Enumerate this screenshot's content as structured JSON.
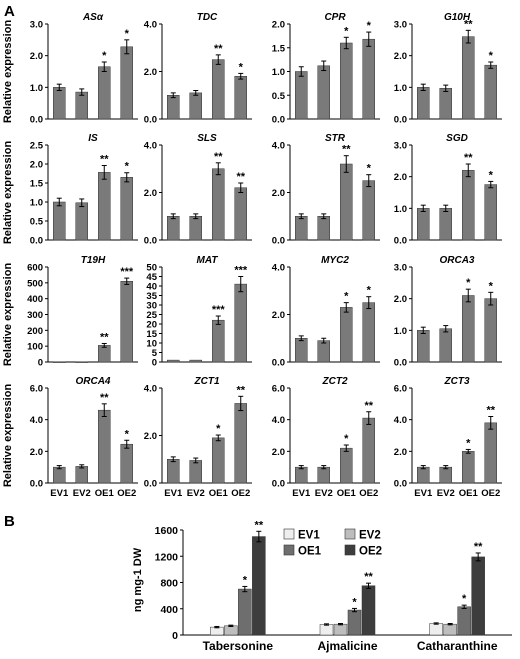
{
  "panels": {
    "a": {
      "label": "A",
      "ylabel": "Relative expression"
    },
    "b": {
      "label": "B",
      "ylabel": "ng mg-1 DW"
    }
  },
  "colors": {
    "EV1": "#eeeeee",
    "EV2": "#bdbdbd",
    "OE1": "#6e6e6e",
    "OE2": "#3d3d3d",
    "single": "#7a7a7a"
  },
  "chart_data": [
    {
      "type": "bar",
      "panel": "A",
      "title": "ASα",
      "categories": [
        "EV1",
        "EV2",
        "OE1",
        "OE2"
      ],
      "values": [
        1.0,
        0.85,
        1.65,
        2.28
      ],
      "errors": [
        0.1,
        0.1,
        0.15,
        0.22
      ],
      "significance": [
        "",
        "",
        "*",
        "*"
      ],
      "ylabel": "Relative expression",
      "ylim": [
        0,
        3.0
      ],
      "yticks": [
        0.0,
        1.0,
        2.0,
        3.0
      ],
      "yticklabels": [
        "0.0",
        "1.0",
        "2.0",
        "3.0"
      ],
      "xticks_shown": false
    },
    {
      "type": "bar",
      "panel": "A",
      "title": "TDC",
      "categories": [
        "EV1",
        "EV2",
        "OE1",
        "OE2"
      ],
      "values": [
        1.0,
        1.1,
        2.5,
        1.8
      ],
      "errors": [
        0.1,
        0.1,
        0.2,
        0.12
      ],
      "significance": [
        "",
        "",
        "**",
        "*"
      ],
      "ylim": [
        0,
        4.0
      ],
      "yticks": [
        0.0,
        2.0,
        4.0
      ],
      "yticklabels": [
        "0.0",
        "2.0",
        "4.0"
      ],
      "xticks_shown": false
    },
    {
      "type": "bar",
      "panel": "A",
      "title": "CPR",
      "categories": [
        "EV1",
        "EV2",
        "OE1",
        "OE2"
      ],
      "values": [
        1.0,
        1.12,
        1.6,
        1.68
      ],
      "errors": [
        0.1,
        0.1,
        0.12,
        0.15
      ],
      "significance": [
        "",
        "",
        "*",
        "*"
      ],
      "ylim": [
        0,
        2.0
      ],
      "yticks": [
        0.0,
        0.5,
        1.0,
        1.5,
        2.0
      ],
      "yticklabels": [
        "0.0",
        "0.5",
        "1.0",
        "1.5",
        "2.0"
      ],
      "xticks_shown": false
    },
    {
      "type": "bar",
      "panel": "A",
      "title": "G10H",
      "categories": [
        "EV1",
        "EV2",
        "OE1",
        "OE2"
      ],
      "values": [
        1.0,
        0.97,
        2.6,
        1.7
      ],
      "errors": [
        0.1,
        0.1,
        0.2,
        0.1
      ],
      "significance": [
        "",
        "",
        "**",
        "*"
      ],
      "ylim": [
        0,
        3.0
      ],
      "yticks": [
        0.0,
        1.0,
        2.0,
        3.0
      ],
      "yticklabels": [
        "0.0",
        "1.0",
        "2.0",
        "3.0"
      ],
      "xticks_shown": false
    },
    {
      "type": "bar",
      "panel": "A",
      "title": "IS",
      "categories": [
        "EV1",
        "EV2",
        "OE1",
        "OE2"
      ],
      "values": [
        1.0,
        0.98,
        1.78,
        1.65
      ],
      "errors": [
        0.1,
        0.1,
        0.18,
        0.12
      ],
      "significance": [
        "",
        "",
        "**",
        "*"
      ],
      "ylabel": "Relative expression",
      "ylim": [
        0,
        2.5
      ],
      "yticks": [
        0.0,
        0.5,
        1.0,
        1.5,
        2.0,
        2.5
      ],
      "yticklabels": [
        "0.0",
        "0.5",
        "1.0",
        "1.5",
        "2.0",
        "2.5"
      ],
      "xticks_shown": false
    },
    {
      "type": "bar",
      "panel": "A",
      "title": "SLS",
      "categories": [
        "EV1",
        "EV2",
        "OE1",
        "OE2"
      ],
      "values": [
        1.0,
        1.0,
        3.0,
        2.2
      ],
      "errors": [
        0.1,
        0.1,
        0.25,
        0.2
      ],
      "significance": [
        "",
        "",
        "**",
        "**"
      ],
      "ylim": [
        0,
        4.0
      ],
      "yticks": [
        0.0,
        2.0,
        4.0
      ],
      "yticklabels": [
        "0.0",
        "2.0",
        "4.0"
      ],
      "xticks_shown": false
    },
    {
      "type": "bar",
      "panel": "A",
      "title": "STR",
      "categories": [
        "EV1",
        "EV2",
        "OE1",
        "OE2"
      ],
      "values": [
        1.0,
        1.0,
        3.2,
        2.5
      ],
      "errors": [
        0.1,
        0.1,
        0.35,
        0.25
      ],
      "significance": [
        "",
        "",
        "**",
        "*"
      ],
      "ylim": [
        0,
        4.0
      ],
      "yticks": [
        0.0,
        2.0,
        4.0
      ],
      "yticklabels": [
        "0.0",
        "2.0",
        "4.0"
      ],
      "xticks_shown": false
    },
    {
      "type": "bar",
      "panel": "A",
      "title": "SGD",
      "categories": [
        "EV1",
        "EV2",
        "OE1",
        "OE2"
      ],
      "values": [
        1.0,
        1.0,
        2.2,
        1.75
      ],
      "errors": [
        0.1,
        0.1,
        0.2,
        0.1
      ],
      "significance": [
        "",
        "",
        "**",
        "*"
      ],
      "ylim": [
        0,
        3.0
      ],
      "yticks": [
        0.0,
        1.0,
        2.0,
        3.0
      ],
      "yticklabels": [
        "0.0",
        "1.0",
        "2.0",
        "3.0"
      ],
      "xticks_shown": false
    },
    {
      "type": "bar",
      "panel": "A",
      "title": "T19H",
      "categories": [
        "EV1",
        "EV2",
        "OE1",
        "OE2"
      ],
      "values": [
        1,
        1,
        105,
        510
      ],
      "errors": [
        0,
        0,
        12,
        20
      ],
      "significance": [
        "",
        "",
        "**",
        "***"
      ],
      "ylabel": "Relative expression",
      "ylim": [
        0,
        600
      ],
      "yticks": [
        0,
        100,
        200,
        300,
        400,
        500,
        600
      ],
      "yticklabels": [
        "0",
        "100",
        "200",
        "300",
        "400",
        "500",
        "600"
      ],
      "xticks_shown": false
    },
    {
      "type": "bar",
      "panel": "A",
      "title": "MAT",
      "categories": [
        "EV1",
        "EV2",
        "OE1",
        "OE2"
      ],
      "values": [
        1,
        1,
        22,
        41
      ],
      "errors": [
        0,
        0,
        2.2,
        4
      ],
      "significance": [
        "",
        "",
        "***",
        "***"
      ],
      "ylim": [
        0,
        50
      ],
      "yticks": [
        0,
        5,
        10,
        15,
        20,
        25,
        30,
        35,
        40,
        45,
        50
      ],
      "yticklabels": [
        "0",
        "5",
        "10",
        "15",
        "20",
        "25",
        "30",
        "35",
        "40",
        "45",
        "50"
      ],
      "xticks_shown": false
    },
    {
      "type": "bar",
      "panel": "A",
      "title": "MYC2",
      "categories": [
        "EV1",
        "EV2",
        "OE1",
        "OE2"
      ],
      "values": [
        1.0,
        0.9,
        2.3,
        2.5
      ],
      "errors": [
        0.1,
        0.1,
        0.2,
        0.25
      ],
      "significance": [
        "",
        "",
        "*",
        "*"
      ],
      "ylim": [
        0,
        4.0
      ],
      "yticks": [
        0.0,
        2.0,
        4.0
      ],
      "yticklabels": [
        "0.0",
        "2.0",
        "4.0"
      ],
      "xticks_shown": false
    },
    {
      "type": "bar",
      "panel": "A",
      "title": "ORCA3",
      "categories": [
        "EV1",
        "EV2",
        "OE1",
        "OE2"
      ],
      "values": [
        1.0,
        1.05,
        2.1,
        2.0
      ],
      "errors": [
        0.1,
        0.1,
        0.2,
        0.2
      ],
      "significance": [
        "",
        "",
        "*",
        "*"
      ],
      "ylim": [
        0,
        3.0
      ],
      "yticks": [
        0.0,
        1.0,
        2.0,
        3.0
      ],
      "yticklabels": [
        "0.0",
        "1.0",
        "2.0",
        "3.0"
      ],
      "xticks_shown": false
    },
    {
      "type": "bar",
      "panel": "A",
      "title": "ORCA4",
      "categories": [
        "EV1",
        "EV2",
        "OE1",
        "OE2"
      ],
      "values": [
        1.0,
        1.05,
        4.6,
        2.45
      ],
      "errors": [
        0.1,
        0.1,
        0.4,
        0.25
      ],
      "significance": [
        "",
        "",
        "**",
        "*"
      ],
      "ylabel": "Relative expression",
      "ylim": [
        0,
        6.0
      ],
      "yticks": [
        0.0,
        2.0,
        4.0,
        6.0
      ],
      "yticklabels": [
        "0.0",
        "2.0",
        "4.0",
        "6.0"
      ],
      "xticks_shown": true
    },
    {
      "type": "bar",
      "panel": "A",
      "title": "ZCT1",
      "categories": [
        "EV1",
        "EV2",
        "OE1",
        "OE2"
      ],
      "values": [
        1.0,
        0.95,
        1.9,
        3.35
      ],
      "errors": [
        0.1,
        0.1,
        0.12,
        0.3
      ],
      "significance": [
        "",
        "",
        "*",
        "**"
      ],
      "ylim": [
        0,
        4.0
      ],
      "yticks": [
        0.0,
        2.0,
        4.0
      ],
      "yticklabels": [
        "0.0",
        "2.0",
        "4.0"
      ],
      "xticks_shown": true
    },
    {
      "type": "bar",
      "panel": "A",
      "title": "ZCT2",
      "categories": [
        "EV1",
        "EV2",
        "OE1",
        "OE2"
      ],
      "values": [
        1.0,
        1.0,
        2.2,
        4.1
      ],
      "errors": [
        0.1,
        0.1,
        0.2,
        0.4
      ],
      "significance": [
        "",
        "",
        "*",
        "**"
      ],
      "ylim": [
        0,
        6.0
      ],
      "yticks": [
        0.0,
        2.0,
        4.0,
        6.0
      ],
      "yticklabels": [
        "0.0",
        "2.0",
        "4.0",
        "6.0"
      ],
      "xticks_shown": true
    },
    {
      "type": "bar",
      "panel": "A",
      "title": "ZCT3",
      "categories": [
        "EV1",
        "EV2",
        "OE1",
        "OE2"
      ],
      "values": [
        1.0,
        1.0,
        2.0,
        3.8
      ],
      "errors": [
        0.1,
        0.1,
        0.12,
        0.4
      ],
      "significance": [
        "",
        "",
        "*",
        "**"
      ],
      "ylim": [
        0,
        6.0
      ],
      "yticks": [
        0.0,
        2.0,
        4.0,
        6.0
      ],
      "yticklabels": [
        "0.0",
        "2.0",
        "4.0",
        "6.0"
      ],
      "xticks_shown": true
    },
    {
      "type": "bar",
      "panel": "B",
      "categories": [
        "Tabersonine",
        "Ajmalicine",
        "Catharanthine"
      ],
      "series": [
        {
          "name": "EV1",
          "values": [
            120,
            160,
            175
          ],
          "errors": [
            10,
            10,
            10
          ],
          "significance": [
            "",
            "",
            ""
          ]
        },
        {
          "name": "EV2",
          "values": [
            140,
            165,
            165
          ],
          "errors": [
            10,
            10,
            10
          ],
          "significance": [
            "",
            "",
            ""
          ]
        },
        {
          "name": "OE1",
          "values": [
            700,
            380,
            430
          ],
          "errors": [
            40,
            25,
            25
          ],
          "significance": [
            "*",
            "*",
            "*"
          ]
        },
        {
          "name": "OE2",
          "values": [
            1500,
            750,
            1190
          ],
          "errors": [
            80,
            40,
            60
          ],
          "significance": [
            "**",
            "**",
            "**"
          ]
        }
      ],
      "ylabel": "ng mg-1 DW",
      "ylim": [
        0,
        1600
      ],
      "yticks": [
        0,
        400,
        800,
        1200,
        1600
      ],
      "yticklabels": [
        "0",
        "400",
        "800",
        "1200",
        "1600"
      ],
      "legend": "top-right",
      "legend_columns": 2
    }
  ]
}
